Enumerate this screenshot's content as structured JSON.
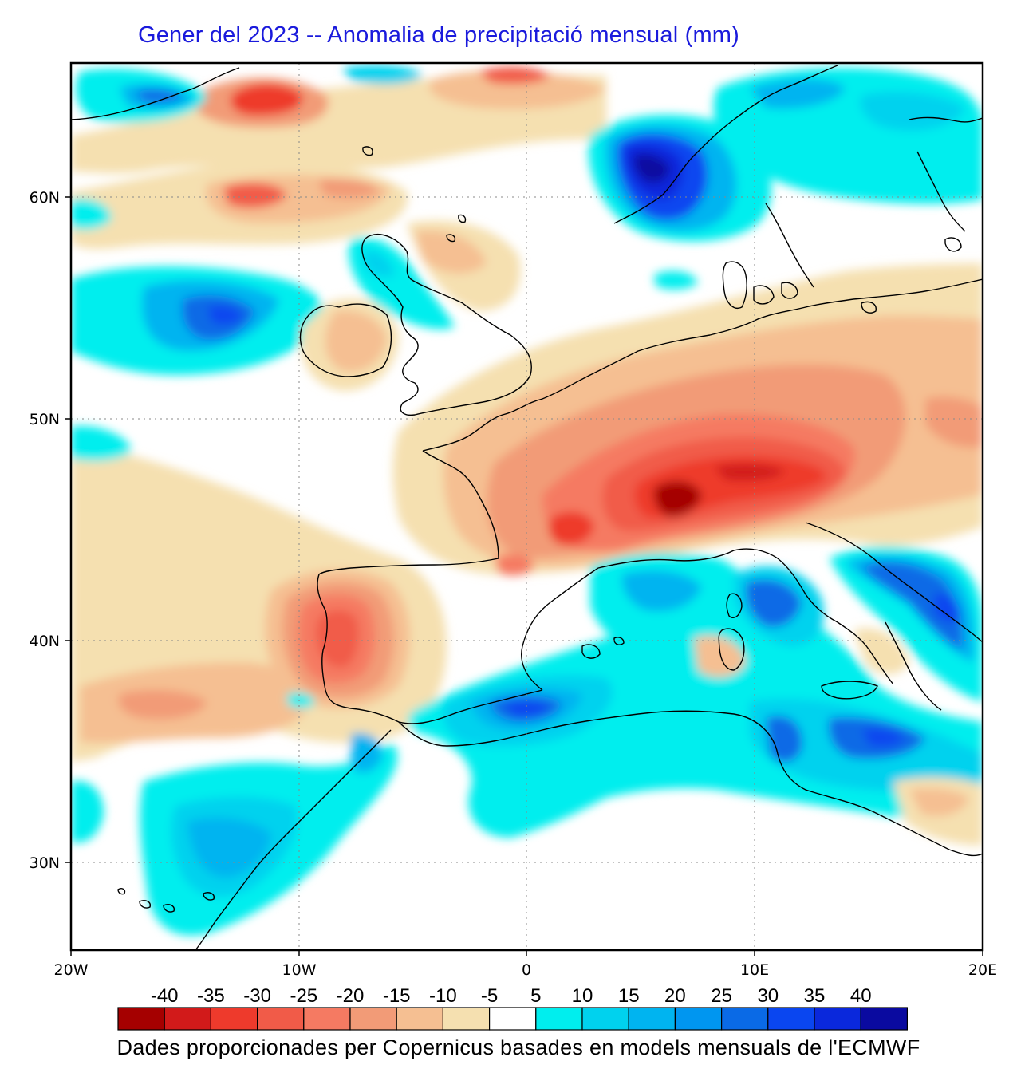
{
  "title": "Gener del 2023 -- Anomalia de precipitació mensual (mm)",
  "footer": "Dades proporcionades per Copernicus basades en models mensuals de l'ECMWF",
  "axes": {
    "latitude_ticks": [
      "60N",
      "50N",
      "40N",
      "30N"
    ],
    "longitude_ticks": [
      "20W",
      "10W",
      "0",
      "10E",
      "20E"
    ],
    "lat_range": [
      26,
      66
    ],
    "lon_range": [
      -20,
      20
    ]
  },
  "legend": {
    "labels": [
      "-40",
      "-35",
      "-30",
      "-25",
      "-20",
      "-15",
      "-10",
      "-5",
      "5",
      "10",
      "15",
      "20",
      "25",
      "30",
      "35",
      "40"
    ],
    "colors": [
      "#a50000",
      "#d21a1a",
      "#ee3a2c",
      "#f15b48",
      "#f57a62",
      "#f29b77",
      "#f5bf92",
      "#f5e0b0",
      "#ffffff",
      "#00eeee",
      "#00d2ee",
      "#00b4f0",
      "#0096f0",
      "#0a6ae6",
      "#0a46f0",
      "#0a28dc",
      "#0a0aa0"
    ]
  },
  "colors": {
    "title": "#1a1adc",
    "coastline": "#000000",
    "grid": "#888888"
  }
}
